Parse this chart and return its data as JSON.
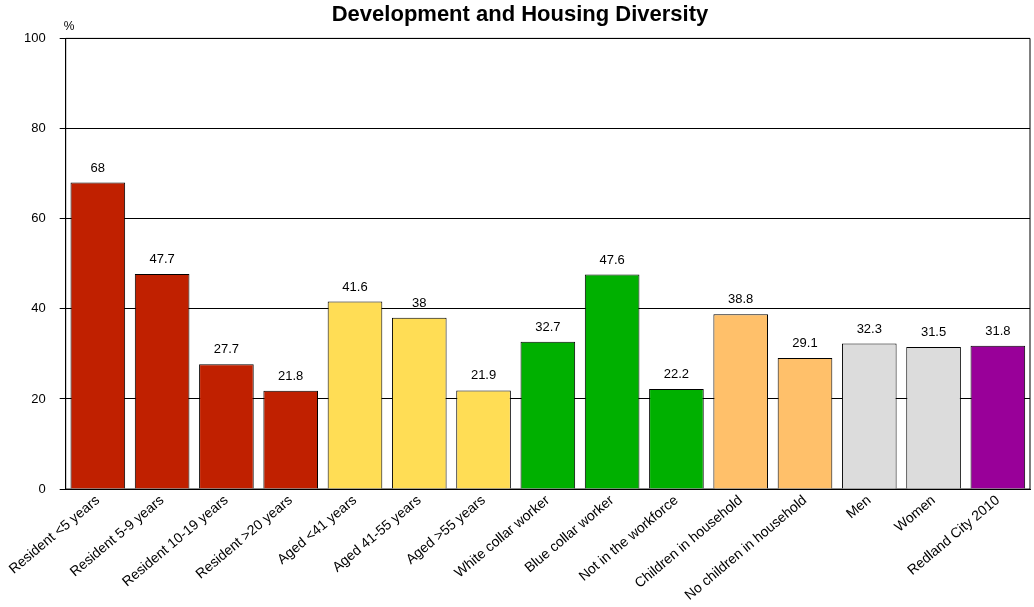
{
  "chart_data": {
    "type": "bar",
    "title": "Development and Housing Diversity",
    "ylabel": "%",
    "categories": [
      "Resident <5 years",
      "Resident 5-9 years",
      "Resident 10-19 years",
      "Resident >20 years",
      "Aged <41 years",
      "Aged 41-55 years",
      "Aged >55 years",
      "White collar worker",
      "Blue collar worker",
      "Not in the workforce",
      "Children in household",
      "No children in household",
      "Men",
      "Women",
      "Redland City 2010"
    ],
    "values": [
      68,
      47.7,
      27.7,
      21.8,
      41.6,
      38,
      21.9,
      32.7,
      47.6,
      22.2,
      38.8,
      29.1,
      32.3,
      31.5,
      31.8
    ],
    "colors": [
      "#c02000",
      "#c02000",
      "#c02000",
      "#c02000",
      "#ffdd55",
      "#ffdd55",
      "#ffdd55",
      "#00b000",
      "#00b000",
      "#00b000",
      "#ffc06a",
      "#ffc06a",
      "#dcdcdc",
      "#dcdcdc",
      "#990099"
    ],
    "ylim": [
      0,
      100
    ],
    "yticks": [
      0,
      20,
      40,
      60,
      80,
      100
    ],
    "grid": "y",
    "data_labels": true,
    "legend": false
  }
}
